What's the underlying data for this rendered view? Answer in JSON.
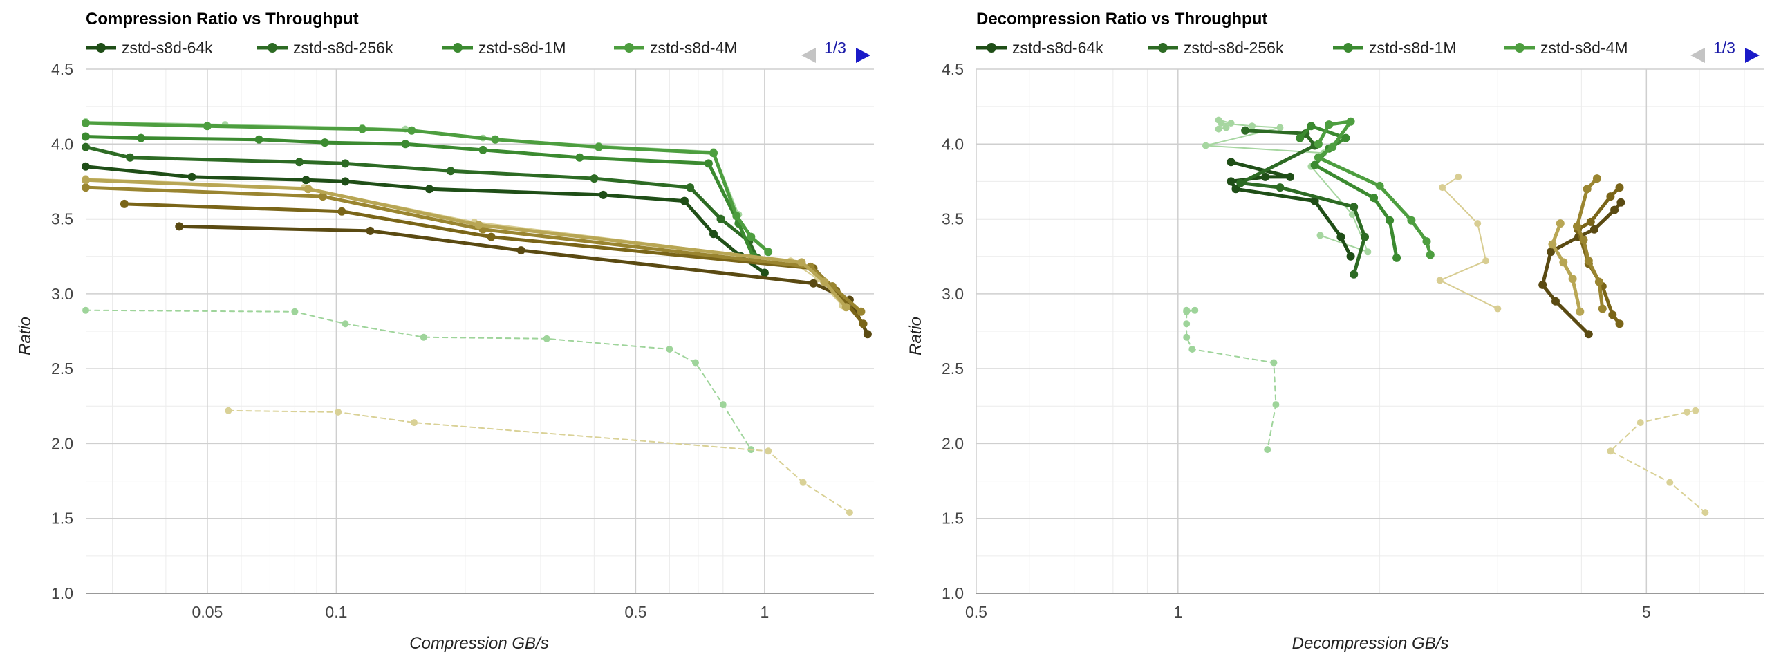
{
  "colors": {
    "s64k": "#1f4e17",
    "s256k": "#2d6b24",
    "s1M": "#3b8a30",
    "s4M": "#4d9e3f",
    "olive_dark": "#5a4a12",
    "olive_mid": "#7a6518",
    "olive_light": "#9a8530",
    "olive_pale": "#b8a654",
    "green_dashed": "#9ed49a",
    "tan_dashed": "#d9d196",
    "green_pale": "#a6d6a0",
    "tan_pale": "#d8cd92"
  },
  "chart_data": [
    {
      "type": "line",
      "title": "Compression Ratio vs Throughput",
      "xlabel": "Compression GB/s",
      "ylabel": "Ratio",
      "x_scale": "log",
      "xlim": [
        0.026,
        1.8
      ],
      "ylim": [
        1.0,
        4.5
      ],
      "x_ticks": [
        {
          "value": 0.05,
          "label": "0.05"
        },
        {
          "value": 0.1,
          "label": "0.1"
        },
        {
          "value": 0.5,
          "label": "0.5"
        },
        {
          "value": 1,
          "label": "1"
        }
      ],
      "y_ticks": [
        "1.0",
        "1.5",
        "2.0",
        "2.5",
        "3.0",
        "3.5",
        "4.0",
        "4.5"
      ],
      "grid": true,
      "legend": {
        "position": "top",
        "entries": [
          "zstd-s8d-64k",
          "zstd-s8d-256k",
          "zstd-s8d-1M",
          "zstd-s8d-4M"
        ],
        "page": "1/3"
      },
      "series": [
        {
          "name": "zstd-s8d-64k",
          "color": "s64k",
          "style": "solid",
          "width": 5,
          "marker": 6,
          "x": [
            0.026,
            0.046,
            0.085,
            0.105,
            0.165,
            0.42,
            0.65,
            0.76,
            0.88,
            1.0
          ],
          "y": [
            3.85,
            3.78,
            3.76,
            3.75,
            3.7,
            3.66,
            3.62,
            3.4,
            3.25,
            3.14
          ]
        },
        {
          "name": "zstd-s8d-256k",
          "color": "s256k",
          "style": "solid",
          "width": 5,
          "marker": 6,
          "x": [
            0.026,
            0.033,
            0.082,
            0.105,
            0.185,
            0.4,
            0.67,
            0.79,
            0.92,
            0.96
          ],
          "y": [
            3.98,
            3.91,
            3.88,
            3.87,
            3.82,
            3.77,
            3.71,
            3.5,
            3.35,
            3.24
          ]
        },
        {
          "name": "zstd-s8d-1M",
          "color": "s1M",
          "style": "solid",
          "width": 5,
          "marker": 6,
          "x": [
            0.026,
            0.035,
            0.066,
            0.094,
            0.145,
            0.22,
            0.37,
            0.74,
            0.87,
            0.94
          ],
          "y": [
            4.05,
            4.04,
            4.03,
            4.01,
            4.0,
            3.96,
            3.91,
            3.87,
            3.47,
            3.25
          ]
        },
        {
          "name": "zstd-s8d-4M",
          "color": "s4M",
          "style": "solid",
          "width": 5,
          "marker": 6,
          "x": [
            0.026,
            0.05,
            0.115,
            0.15,
            0.235,
            0.41,
            0.76,
            0.86,
            0.93,
            1.02
          ],
          "y": [
            4.14,
            4.12,
            4.1,
            4.09,
            4.03,
            3.98,
            3.94,
            3.52,
            3.38,
            3.28
          ]
        },
        {
          "name": "",
          "color": "olive_dark",
          "style": "solid",
          "width": 5,
          "marker": 6,
          "x": [
            0.043,
            0.12,
            0.27,
            1.3,
            1.58,
            1.74
          ],
          "y": [
            3.45,
            3.42,
            3.29,
            3.07,
            2.96,
            2.73
          ]
        },
        {
          "name": "",
          "color": "olive_mid",
          "style": "solid",
          "width": 5,
          "marker": 6,
          "x": [
            0.032,
            0.103,
            0.23,
            1.3,
            1.47,
            1.7
          ],
          "y": [
            3.6,
            3.55,
            3.38,
            3.17,
            3.02,
            2.8
          ]
        },
        {
          "name": "",
          "color": "olive_light",
          "style": "solid",
          "width": 5,
          "marker": 6,
          "x": [
            0.026,
            0.093,
            0.22,
            1.28,
            1.44,
            1.68
          ],
          "y": [
            3.71,
            3.65,
            3.43,
            3.18,
            3.05,
            2.88
          ]
        },
        {
          "name": "",
          "color": "olive_pale",
          "style": "solid",
          "width": 5,
          "marker": 6,
          "x": [
            0.026,
            0.086,
            0.215,
            1.22,
            1.38,
            1.55
          ],
          "y": [
            3.76,
            3.7,
            3.46,
            3.21,
            3.08,
            2.91
          ]
        },
        {
          "name": "",
          "color": "green_dashed",
          "style": "dashed",
          "width": 2,
          "marker": 5,
          "x": [
            0.026,
            0.08,
            0.105,
            0.16,
            0.31,
            0.6,
            0.69,
            0.8,
            0.93
          ],
          "y": [
            2.89,
            2.88,
            2.8,
            2.71,
            2.7,
            2.63,
            2.54,
            2.26,
            1.96
          ]
        },
        {
          "name": "",
          "color": "tan_dashed",
          "style": "dashed",
          "width": 2,
          "marker": 5,
          "x": [
            0.056,
            0.101,
            0.152,
            1.02,
            1.23,
            1.58
          ],
          "y": [
            2.22,
            2.21,
            2.14,
            1.95,
            1.74,
            1.54
          ]
        },
        {
          "name": "",
          "color": "green_pale",
          "style": "solid",
          "width": 2,
          "marker": 5,
          "x": [
            0.026,
            0.055,
            0.115,
            0.145,
            0.22,
            0.41,
            0.76,
            0.87
          ],
          "y": [
            4.15,
            4.13,
            4.11,
            4.1,
            4.04,
            3.99,
            3.95,
            3.53
          ]
        },
        {
          "name": "",
          "color": "tan_pale",
          "style": "solid",
          "width": 2,
          "marker": 5,
          "x": [
            0.026,
            0.084,
            0.21,
            1.15,
            1.33,
            1.52
          ],
          "y": [
            3.77,
            3.71,
            3.48,
            3.22,
            3.1,
            2.92
          ]
        }
      ]
    },
    {
      "type": "line",
      "title": "Decompression Ratio vs Throughput",
      "xlabel": "Decompression GB/s",
      "ylabel": "Ratio",
      "x_scale": "log",
      "xlim": [
        0.5,
        7.5
      ],
      "ylim": [
        1.0,
        4.5
      ],
      "x_ticks": [
        {
          "value": 0.5,
          "label": "0.5"
        },
        {
          "value": 1,
          "label": "1"
        },
        {
          "value": 5,
          "label": "5"
        }
      ],
      "y_ticks": [
        "1.0",
        "1.5",
        "2.0",
        "2.5",
        "3.0",
        "3.5",
        "4.0",
        "4.5"
      ],
      "grid": true,
      "legend": {
        "position": "top",
        "entries": [
          "zstd-s8d-64k",
          "zstd-s8d-256k",
          "zstd-s8d-1M",
          "zstd-s8d-4M"
        ],
        "page": "1/3"
      },
      "series": [
        {
          "name": "zstd-s8d-64k",
          "color": "s64k",
          "style": "solid",
          "width": 5,
          "marker": 6,
          "x": [
            1.2,
            1.47,
            1.35,
            1.2,
            1.22,
            1.6,
            1.75,
            1.81
          ],
          "y": [
            3.88,
            3.78,
            3.78,
            3.75,
            3.7,
            3.62,
            3.38,
            3.25
          ]
        },
        {
          "name": "zstd-s8d-256k",
          "color": "s256k",
          "style": "solid",
          "width": 5,
          "marker": 6,
          "x": [
            1.26,
            1.55,
            1.6,
            1.24,
            1.42,
            1.83,
            1.9,
            1.83
          ],
          "y": [
            4.09,
            4.07,
            3.99,
            3.74,
            3.71,
            3.58,
            3.38,
            3.13
          ]
        },
        {
          "name": "zstd-s8d-1M",
          "color": "s1M",
          "style": "solid",
          "width": 5,
          "marker": 6,
          "x": [
            1.52,
            1.58,
            1.78,
            1.68,
            1.6,
            1.96,
            2.07,
            2.12
          ],
          "y": [
            4.04,
            4.12,
            4.04,
            3.97,
            3.86,
            3.64,
            3.49,
            3.24
          ]
        },
        {
          "name": "zstd-s8d-4M",
          "color": "s4M",
          "style": "solid",
          "width": 5,
          "marker": 6,
          "x": [
            1.62,
            1.68,
            1.81,
            1.7,
            1.62,
            2.0,
            2.23,
            2.35,
            2.38
          ],
          "y": [
            4.0,
            4.13,
            4.15,
            3.98,
            3.91,
            3.72,
            3.49,
            3.35,
            3.26
          ]
        },
        {
          "name": "",
          "color": "olive_dark",
          "style": "solid",
          "width": 5,
          "marker": 6,
          "x": [
            4.58,
            4.48,
            4.18,
            3.96,
            3.6,
            3.5,
            3.66,
            4.1
          ],
          "y": [
            3.61,
            3.56,
            3.43,
            3.38,
            3.28,
            3.06,
            2.95,
            2.73
          ]
        },
        {
          "name": "",
          "color": "olive_mid",
          "style": "solid",
          "width": 5,
          "marker": 6,
          "x": [
            4.56,
            4.42,
            4.13,
            3.95,
            4.1,
            4.3,
            4.45,
            4.56
          ],
          "y": [
            3.71,
            3.65,
            3.48,
            3.43,
            3.2,
            3.05,
            2.86,
            2.8
          ]
        },
        {
          "name": "",
          "color": "olive_light",
          "style": "solid",
          "width": 5,
          "marker": 6,
          "x": [
            4.22,
            4.08,
            3.94,
            4.03,
            4.1,
            4.25,
            4.3
          ],
          "y": [
            3.77,
            3.7,
            3.45,
            3.36,
            3.22,
            3.08,
            2.9
          ]
        },
        {
          "name": "",
          "color": "olive_pale",
          "style": "solid",
          "width": 5,
          "marker": 6,
          "x": [
            3.72,
            3.62,
            3.76,
            3.88,
            3.98
          ],
          "y": [
            3.47,
            3.33,
            3.21,
            3.1,
            2.88
          ]
        },
        {
          "name": "",
          "color": "green_dashed",
          "style": "dashed",
          "width": 2,
          "marker": 5,
          "x": [
            1.03,
            1.06,
            1.03,
            1.03,
            1.03,
            1.05,
            1.39,
            1.4,
            1.36
          ],
          "y": [
            2.89,
            2.89,
            2.88,
            2.8,
            2.71,
            2.63,
            2.54,
            2.26,
            1.96
          ]
        },
        {
          "name": "",
          "color": "tan_dashed",
          "style": "dashed",
          "width": 2,
          "marker": 5,
          "x": [
            5.92,
            5.75,
            4.9,
            4.42,
            5.42,
            6.12
          ],
          "y": [
            2.22,
            2.21,
            2.14,
            1.95,
            1.74,
            1.54
          ]
        },
        {
          "name": "",
          "color": "green_pale",
          "style": "solid",
          "width": 2,
          "marker": 5,
          "x": [
            1.15,
            1.2,
            1.18,
            1.15,
            1.16,
            1.29,
            1.42,
            1.1,
            1.65,
            1.58,
            1.82,
            1.92,
            1.63
          ],
          "y": [
            4.16,
            4.14,
            4.11,
            4.1,
            4.14,
            4.12,
            4.11,
            3.99,
            3.94,
            3.85,
            3.53,
            3.28,
            3.39
          ]
        },
        {
          "name": "",
          "color": "tan_pale",
          "style": "solid",
          "width": 2,
          "marker": 5,
          "x": [
            2.62,
            2.48,
            2.8,
            2.88,
            2.46,
            3.0
          ],
          "y": [
            3.78,
            3.71,
            3.47,
            3.22,
            3.09,
            2.9
          ]
        }
      ]
    }
  ]
}
